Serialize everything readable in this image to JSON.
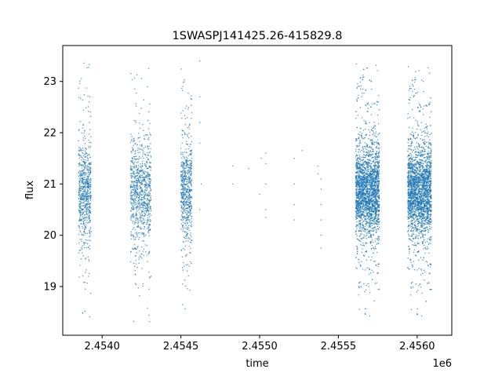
{
  "chart_data": {
    "type": "scatter",
    "title": "1SWASPJ141425.26-415829.8",
    "xlabel": "time",
    "ylabel": "flux",
    "x_offset_label": "1e6",
    "xlim": [
      2.45375,
      2.45622
    ],
    "ylim": [
      18.05,
      23.7
    ],
    "x_ticks": [
      {
        "value": 2.454,
        "label": "2.4540"
      },
      {
        "value": 2.4545,
        "label": "2.4545"
      },
      {
        "value": 2.455,
        "label": "2.4550"
      },
      {
        "value": 2.4555,
        "label": "2.4555"
      },
      {
        "value": 2.456,
        "label": "2.4560"
      }
    ],
    "y_ticks": [
      {
        "value": 19,
        "label": "19"
      },
      {
        "value": 20,
        "label": "20"
      },
      {
        "value": 21,
        "label": "21"
      },
      {
        "value": 22,
        "label": "22"
      },
      {
        "value": 23,
        "label": "23"
      }
    ],
    "grid": false,
    "marker_color": "#1f77b4",
    "observing_seasons": [
      {
        "x_start": 2.45385,
        "x_end": 2.45393,
        "y_center": 20.85,
        "y_spread": 0.45,
        "y_min": 18.4,
        "y_max": 23.4,
        "n_points": 700
      },
      {
        "x_start": 2.45418,
        "x_end": 2.45431,
        "y_center": 20.85,
        "y_spread": 0.5,
        "y_min": 18.3,
        "y_max": 23.4,
        "n_points": 900
      },
      {
        "x_start": 2.4545,
        "x_end": 2.45457,
        "y_center": 20.85,
        "y_spread": 0.45,
        "y_min": 18.4,
        "y_max": 23.3,
        "n_points": 650
      },
      {
        "x_start": 2.45561,
        "x_end": 2.45576,
        "y_center": 20.85,
        "y_spread": 0.42,
        "y_min": 18.3,
        "y_max": 23.4,
        "n_points": 2600
      },
      {
        "x_start": 2.45594,
        "x_end": 2.45609,
        "y_center": 20.85,
        "y_spread": 0.42,
        "y_min": 18.3,
        "y_max": 23.35,
        "n_points": 2600
      }
    ],
    "sparse_points": [
      {
        "x": 2.45462,
        "y": 23.4
      },
      {
        "x": 2.45462,
        "y": 22.7
      },
      {
        "x": 2.45462,
        "y": 22.2
      },
      {
        "x": 2.45462,
        "y": 21.8
      },
      {
        "x": 2.45462,
        "y": 20.5
      },
      {
        "x": 2.45463,
        "y": 21.0
      },
      {
        "x": 2.45483,
        "y": 21.35
      },
      {
        "x": 2.45483,
        "y": 21.0
      },
      {
        "x": 2.45493,
        "y": 21.3
      },
      {
        "x": 2.45501,
        "y": 21.5
      },
      {
        "x": 2.455,
        "y": 20.8
      },
      {
        "x": 2.45504,
        "y": 21.6
      },
      {
        "x": 2.45504,
        "y": 21.4
      },
      {
        "x": 2.45504,
        "y": 21.0
      },
      {
        "x": 2.45504,
        "y": 20.5
      },
      {
        "x": 2.45504,
        "y": 20.35
      },
      {
        "x": 2.45522,
        "y": 21.5
      },
      {
        "x": 2.45522,
        "y": 21.0
      },
      {
        "x": 2.45522,
        "y": 20.6
      },
      {
        "x": 2.45522,
        "y": 20.3
      },
      {
        "x": 2.45527,
        "y": 21.65
      },
      {
        "x": 2.45537,
        "y": 21.35
      },
      {
        "x": 2.45537,
        "y": 21.2
      },
      {
        "x": 2.45539,
        "y": 21.1
      },
      {
        "x": 2.45539,
        "y": 20.9
      },
      {
        "x": 2.45539,
        "y": 20.6
      },
      {
        "x": 2.45539,
        "y": 20.3
      },
      {
        "x": 2.45539,
        "y": 20.0
      },
      {
        "x": 2.45539,
        "y": 19.75
      }
    ]
  }
}
